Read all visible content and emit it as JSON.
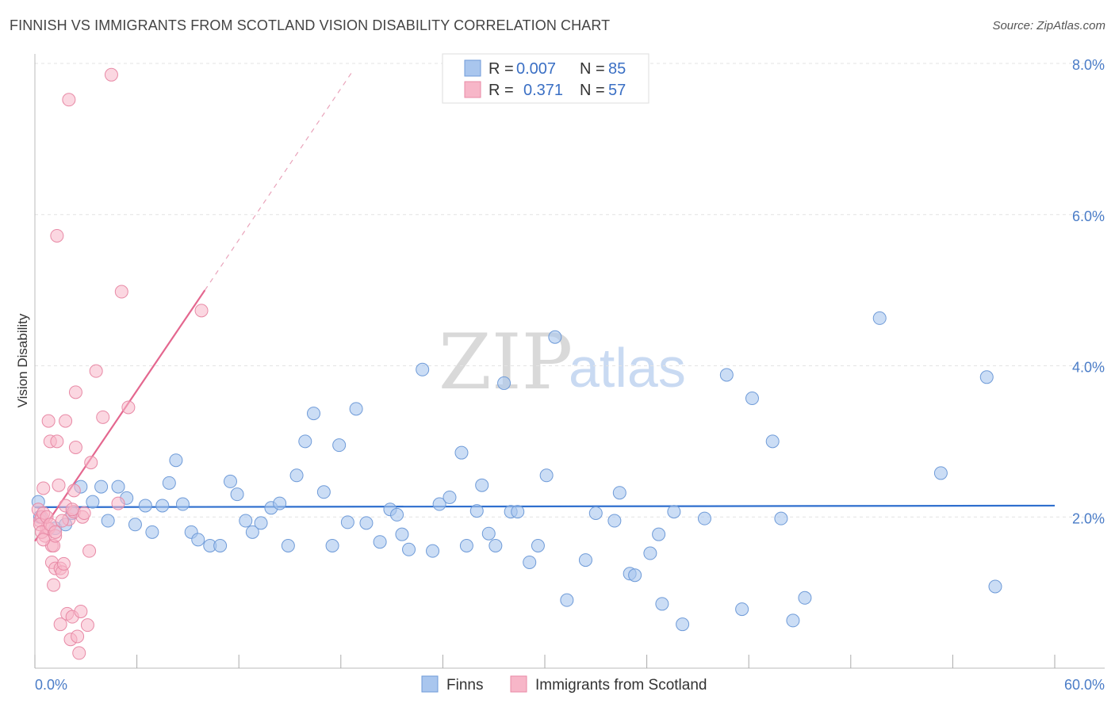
{
  "header": {
    "title": "FINNISH VS IMMIGRANTS FROM SCOTLAND VISION DISABILITY CORRELATION CHART",
    "source": "Source: ZipAtlas.com"
  },
  "watermark": {
    "zip": "ZIP",
    "atlas": "atlas"
  },
  "colors": {
    "finns": "#a9c6ee",
    "finns_stroke": "#6f9bd8",
    "finns_line": "#2f6fce",
    "scot": "#f7b6c8",
    "scot_stroke": "#e88aa6",
    "scot_line": "#e4678f"
  },
  "chart_data": {
    "type": "scatter",
    "title": "FINNISH VS IMMIGRANTS FROM SCOTLAND VISION DISABILITY CORRELATION CHART",
    "xlabel": "",
    "ylabel": "Vision Disability",
    "xlim": [
      0,
      60
    ],
    "ylim": [
      0,
      8.4
    ],
    "x_tick_labels": {
      "min": "0.0%",
      "max": "60.0%"
    },
    "y_ticks": [
      {
        "value": 2,
        "label": "2.0%"
      },
      {
        "value": 4,
        "label": "4.0%"
      },
      {
        "value": 6,
        "label": "6.0%"
      },
      {
        "value": 8,
        "label": "8.0%"
      }
    ],
    "legend": {
      "position": "top-center",
      "rows": [
        {
          "r_label": "R =",
          "r": "0.007",
          "n_label": "N =",
          "n": "85"
        },
        {
          "r_label": "R =",
          "r": "0.371",
          "n_label": "N =",
          "n": "57"
        }
      ]
    },
    "series": [
      {
        "name": "Finns",
        "trend": {
          "x0": 0,
          "y0": 2.13,
          "x1": 60,
          "y1": 2.15
        },
        "points": [
          [
            0.3,
            2.0
          ],
          [
            1.2,
            1.85
          ],
          [
            1.8,
            1.9
          ],
          [
            2.2,
            2.05
          ],
          [
            2.7,
            2.4
          ],
          [
            3.4,
            2.2
          ],
          [
            3.9,
            2.4
          ],
          [
            4.3,
            1.95
          ],
          [
            4.9,
            2.4
          ],
          [
            5.4,
            2.25
          ],
          [
            5.9,
            1.9
          ],
          [
            6.5,
            2.15
          ],
          [
            6.9,
            1.8
          ],
          [
            7.5,
            2.15
          ],
          [
            7.9,
            2.45
          ],
          [
            8.3,
            2.75
          ],
          [
            8.7,
            2.17
          ],
          [
            9.2,
            1.8
          ],
          [
            9.6,
            1.7
          ],
          [
            10.3,
            1.62
          ],
          [
            10.9,
            1.62
          ],
          [
            11.5,
            2.47
          ],
          [
            11.9,
            2.3
          ],
          [
            12.4,
            1.95
          ],
          [
            12.8,
            1.8
          ],
          [
            13.3,
            1.92
          ],
          [
            13.9,
            2.12
          ],
          [
            14.4,
            2.18
          ],
          [
            14.9,
            1.62
          ],
          [
            15.4,
            2.55
          ],
          [
            15.9,
            3.0
          ],
          [
            16.4,
            3.37
          ],
          [
            17.0,
            2.33
          ],
          [
            17.5,
            1.62
          ],
          [
            17.9,
            2.95
          ],
          [
            18.4,
            1.93
          ],
          [
            18.9,
            3.43
          ],
          [
            19.5,
            1.92
          ],
          [
            20.3,
            1.67
          ],
          [
            20.9,
            2.1
          ],
          [
            21.3,
            2.03
          ],
          [
            21.6,
            1.77
          ],
          [
            22.0,
            1.57
          ],
          [
            22.8,
            3.95
          ],
          [
            23.4,
            1.55
          ],
          [
            23.8,
            2.17
          ],
          [
            24.4,
            2.26
          ],
          [
            25.1,
            2.85
          ],
          [
            25.4,
            1.62
          ],
          [
            26.0,
            2.08
          ],
          [
            26.3,
            2.42
          ],
          [
            26.7,
            1.78
          ],
          [
            27.1,
            1.62
          ],
          [
            27.6,
            3.77
          ],
          [
            28.0,
            2.07
          ],
          [
            28.4,
            2.07
          ],
          [
            29.1,
            1.4
          ],
          [
            29.6,
            1.62
          ],
          [
            30.1,
            2.55
          ],
          [
            30.6,
            4.38
          ],
          [
            31.3,
            0.9
          ],
          [
            32.4,
            1.43
          ],
          [
            33.0,
            2.05
          ],
          [
            34.1,
            1.95
          ],
          [
            34.4,
            2.32
          ],
          [
            35.0,
            1.25
          ],
          [
            35.3,
            1.23
          ],
          [
            36.2,
            1.52
          ],
          [
            36.7,
            1.77
          ],
          [
            36.9,
            0.85
          ],
          [
            37.6,
            2.07
          ],
          [
            38.1,
            0.58
          ],
          [
            39.4,
            1.98
          ],
          [
            40.7,
            3.88
          ],
          [
            41.6,
            0.78
          ],
          [
            42.2,
            3.57
          ],
          [
            43.4,
            3.0
          ],
          [
            43.9,
            1.98
          ],
          [
            44.6,
            0.63
          ],
          [
            45.3,
            0.93
          ],
          [
            49.7,
            4.63
          ],
          [
            53.3,
            2.58
          ],
          [
            56.0,
            3.85
          ],
          [
            56.5,
            1.08
          ],
          [
            0.2,
            2.2
          ]
        ]
      },
      {
        "name": "Immigrants from Scotland",
        "trend": {
          "x0": 0,
          "y0": 1.68,
          "x1": 10,
          "y1": 5.0,
          "dash_x1": 18.7,
          "dash_y1": 7.9
        },
        "points": [
          [
            0.2,
            2.1
          ],
          [
            0.3,
            1.95
          ],
          [
            0.4,
            2.0
          ],
          [
            0.5,
            2.38
          ],
          [
            0.5,
            2.05
          ],
          [
            0.6,
            1.75
          ],
          [
            0.7,
            1.85
          ],
          [
            0.8,
            3.27
          ],
          [
            0.8,
            1.85
          ],
          [
            0.9,
            3.0
          ],
          [
            1.0,
            1.62
          ],
          [
            1.0,
            1.4
          ],
          [
            1.1,
            1.1
          ],
          [
            1.1,
            1.62
          ],
          [
            1.2,
            1.75
          ],
          [
            1.2,
            1.32
          ],
          [
            1.3,
            3.0
          ],
          [
            1.3,
            5.72
          ],
          [
            1.4,
            2.42
          ],
          [
            1.5,
            1.32
          ],
          [
            1.5,
            0.58
          ],
          [
            1.6,
            1.27
          ],
          [
            1.7,
            1.38
          ],
          [
            1.8,
            3.27
          ],
          [
            1.8,
            2.15
          ],
          [
            1.9,
            0.72
          ],
          [
            2.0,
            7.52
          ],
          [
            2.0,
            1.97
          ],
          [
            2.1,
            0.38
          ],
          [
            2.2,
            0.68
          ],
          [
            2.3,
            2.07
          ],
          [
            2.3,
            2.35
          ],
          [
            2.4,
            2.92
          ],
          [
            2.4,
            3.65
          ],
          [
            2.5,
            0.42
          ],
          [
            2.6,
            0.2
          ],
          [
            2.7,
            0.75
          ],
          [
            2.8,
            2.0
          ],
          [
            3.1,
            0.57
          ],
          [
            3.2,
            1.55
          ],
          [
            3.3,
            2.72
          ],
          [
            3.6,
            3.93
          ],
          [
            4.0,
            3.32
          ],
          [
            4.5,
            7.85
          ],
          [
            4.9,
            2.18
          ],
          [
            5.1,
            4.98
          ],
          [
            5.5,
            3.45
          ],
          [
            9.8,
            4.73
          ],
          [
            0.3,
            1.9
          ],
          [
            0.4,
            1.8
          ],
          [
            0.5,
            1.7
          ],
          [
            0.7,
            2.0
          ],
          [
            0.9,
            1.9
          ],
          [
            1.2,
            1.8
          ],
          [
            1.6,
            1.95
          ],
          [
            2.2,
            2.1
          ],
          [
            2.9,
            2.05
          ]
        ]
      }
    ]
  },
  "bottom_legend": [
    {
      "label": "Finns"
    },
    {
      "label": "Immigrants from Scotland"
    }
  ]
}
